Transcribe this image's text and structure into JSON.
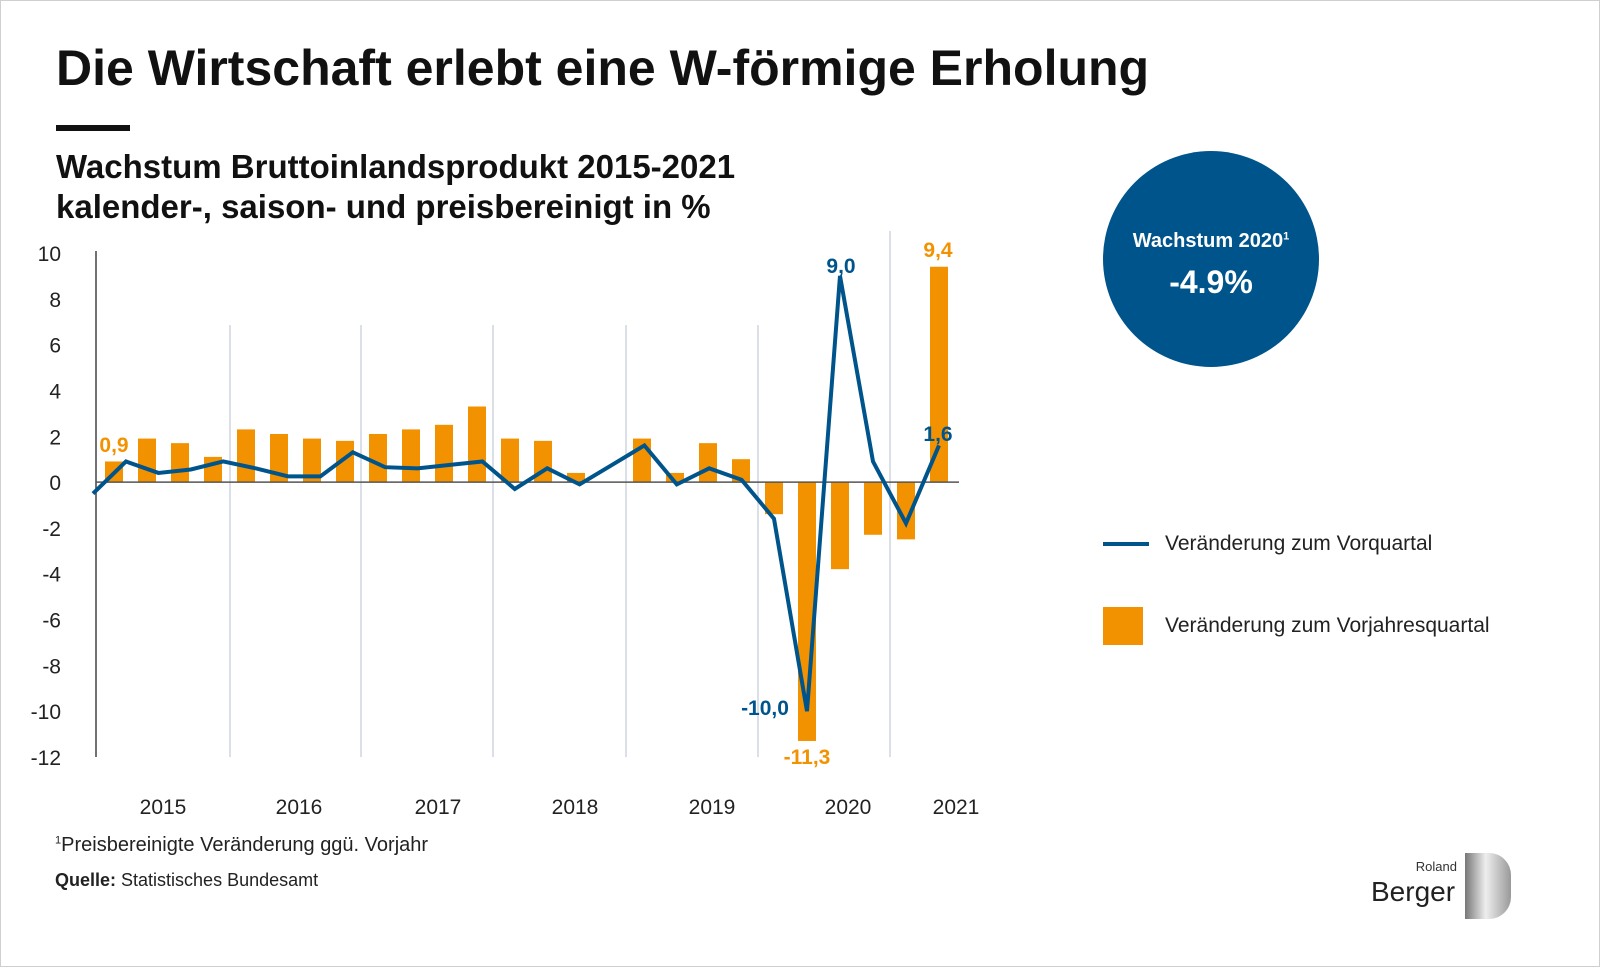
{
  "title": "Die Wirtschaft erlebt eine W-förmige Erholung",
  "subtitle_line1": "Wachstum Bruttoinlandsprodukt 2015-2021",
  "subtitle_line2": "kalender-, saison- und preisbereinigt in %",
  "callout": {
    "label": "Wachstum 2020",
    "sup": "1",
    "value": "-4.9%"
  },
  "legend": {
    "line": "Veränderung zum Vorquartal",
    "bar": "Veränderung zum Vorjahresquartal"
  },
  "footnote": {
    "sup": "1",
    "text": "Preisbereinigte Veränderung ggü. Vorjahr"
  },
  "source": {
    "label": "Quelle:",
    "text": "Statistisches Bundesamt"
  },
  "logo": {
    "line1": "Roland",
    "line2": "Berger"
  },
  "colors": {
    "line": "#00548c",
    "bar": "#f39200"
  },
  "chart_data": {
    "type": "bar+line",
    "ylim": [
      -12,
      10
    ],
    "yticks": [
      10,
      8,
      6,
      4,
      2,
      0,
      -2,
      -4,
      -6,
      -8,
      -10,
      -12
    ],
    "year_labels": [
      "2015",
      "2016",
      "2017",
      "2018",
      "2019",
      "2020",
      "2021"
    ],
    "series": [
      {
        "name": "Veränderung zum Vorjahresquartal",
        "type": "bar",
        "values": [
          0.9,
          1.9,
          1.7,
          1.1,
          2.3,
          2.1,
          1.9,
          1.8,
          2.1,
          2.3,
          2.5,
          3.3,
          1.9,
          1.8,
          0.4,
          0.0,
          1.9,
          0.4,
          1.7,
          1.0,
          -1.4,
          -11.3,
          -3.8,
          -2.3,
          -2.5,
          9.4
        ]
      },
      {
        "name": "Veränderung zum Vorquartal",
        "type": "line",
        "start_value": -0.5,
        "values": [
          0.9,
          0.4,
          0.55,
          0.9,
          0.6,
          0.25,
          0.25,
          1.3,
          0.65,
          0.6,
          0.75,
          0.9,
          -0.3,
          0.6,
          -0.1,
          0.75,
          1.6,
          -0.1,
          0.6,
          0.1,
          -1.6,
          -10.0,
          9.0,
          0.9,
          -1.8,
          1.6
        ]
      }
    ],
    "data_labels": {
      "bar_first": "0,9",
      "bar_last": "9,4",
      "bar_min": "-11,3",
      "line_max": "9,0",
      "line_min": "-10,0",
      "line_last": "1,6"
    }
  }
}
